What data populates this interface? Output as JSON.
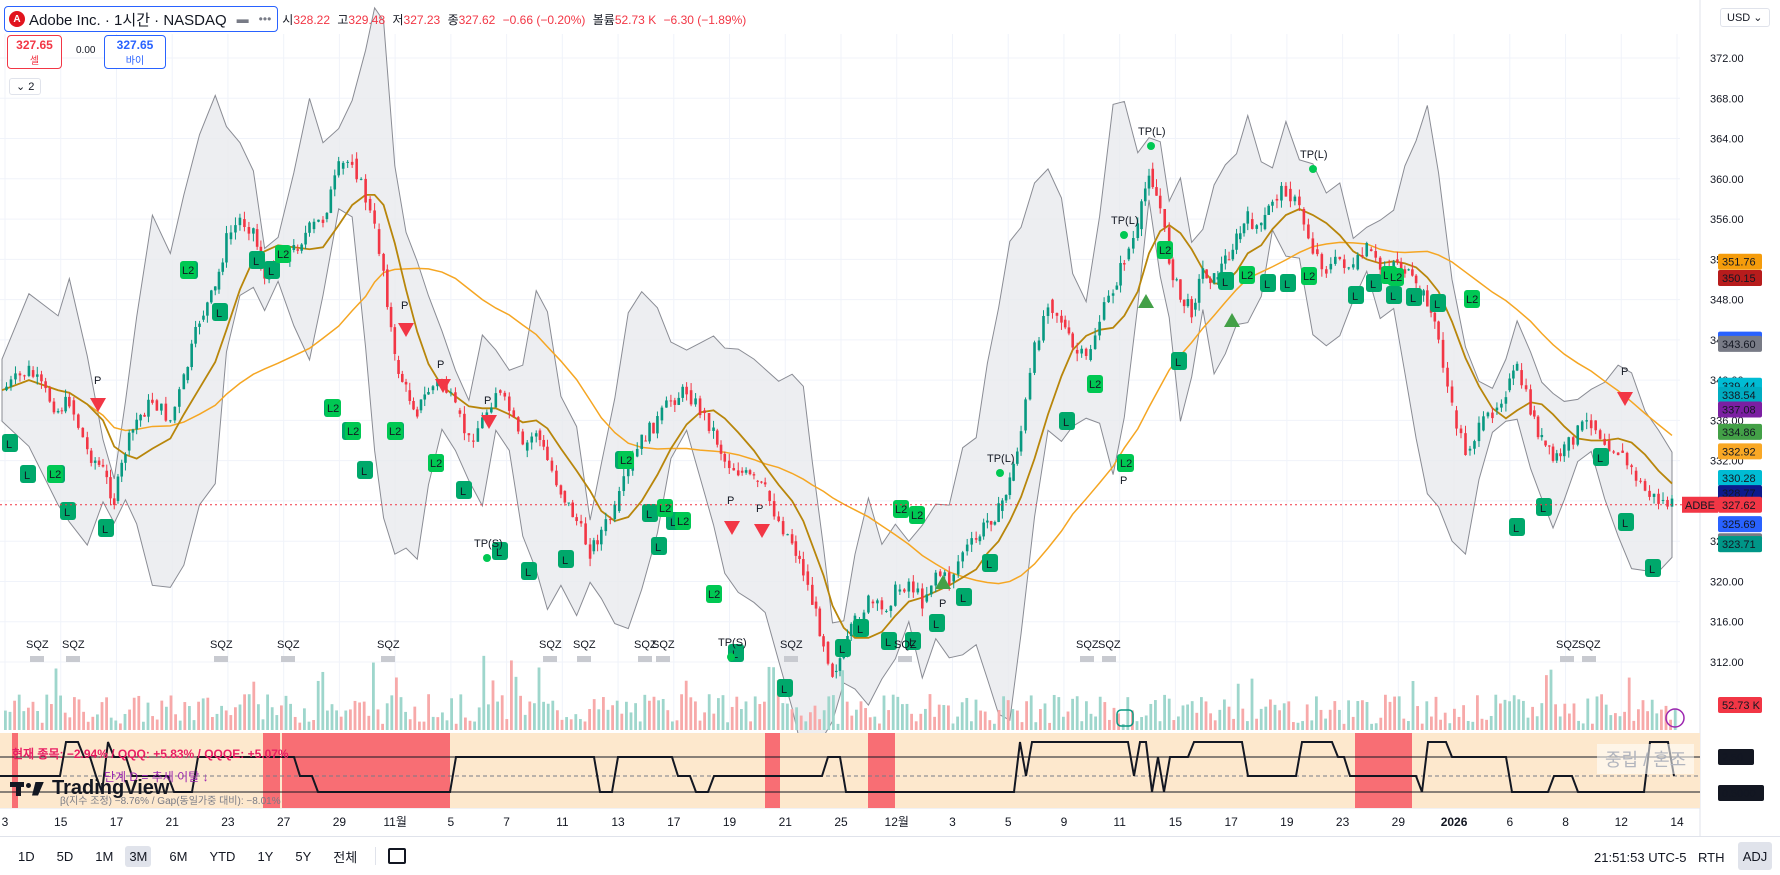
{
  "header": {
    "symbol_title": "Adobe Inc. · 1시간 · NASDAQ",
    "logo_letter": "A",
    "more_icon": "more-dots-icon",
    "open_label": "시",
    "open_value": "328.22",
    "high_label": "고",
    "high_value": "329.48",
    "low_label": "저",
    "low_value": "327.23",
    "close_label": "종",
    "close_value": "327.62",
    "change": "−0.66 (−0.20%)",
    "volume_label": "볼륨",
    "volume_value": "52.73 K",
    "volume_change": "−6.30 (−1.89%)"
  },
  "trade": {
    "sell_price": "327.65",
    "sell_label": "셀",
    "spread": "0.00",
    "buy_price": "327.65",
    "buy_label": "바이"
  },
  "indicators_toggle": "2",
  "currency": "USD",
  "oscillator": {
    "line1": "현재 종목: −2.94% / QQQ: +5.83% / QQQE: +5.07%",
    "line2": "단계 D = 추세 이탈 ↓",
    "line3": "β(지수 조정) −8.76% / Gap(동일가중 대비): −8.01%",
    "level_high": "2.50",
    "level_low": "0.5000",
    "watermark": "중립 / 혼조"
  },
  "chart_data": {
    "type": "candlestick",
    "symbol": "ADBE",
    "interval": "1시간",
    "exchange": "NASDAQ",
    "y_axis": {
      "ticks": [
        "372.00",
        "368.00",
        "364.00",
        "360.00",
        "356.00",
        "352.00",
        "348.00",
        "344.00",
        "340.00",
        "336.00",
        "332.00",
        "328.00",
        "324.00",
        "320.00",
        "316.00",
        "312.00"
      ],
      "ylim": [
        310.5,
        373.5
      ]
    },
    "x_axis": {
      "ticks": [
        "3",
        "15",
        "17",
        "21",
        "23",
        "27",
        "29",
        "11월",
        "5",
        "7",
        "11",
        "13",
        "17",
        "19",
        "21",
        "25",
        "12월",
        "3",
        "5",
        "9",
        "11",
        "15",
        "17",
        "19",
        "23",
        "29",
        "2026",
        "6",
        "8",
        "12",
        "14"
      ]
    },
    "last_price": 327.62,
    "last_price_label": "327.62",
    "last_price_tag": "ADBE",
    "price_tags": [
      {
        "label": "351.76",
        "value": 351.76,
        "color": "#f59c0b"
      },
      {
        "label": "350.15",
        "value": 350.15,
        "color": "#b71c1c"
      },
      {
        "label": "344.03",
        "value": 344.03,
        "color": "#2962ff"
      },
      {
        "label": "343.60",
        "value": 343.6,
        "color": "#787b86"
      },
      {
        "label": "339.44",
        "value": 339.44,
        "color": "#00bcd4"
      },
      {
        "label": "338.54",
        "value": 338.54,
        "color": "#00acc1"
      },
      {
        "label": "337.08",
        "value": 337.08,
        "color": "#7b1fa2"
      },
      {
        "label": "334.86",
        "value": 334.86,
        "color": "#43a047"
      },
      {
        "label": "332.92",
        "value": 332.92,
        "color": "#f9a825"
      },
      {
        "label": "330.28",
        "value": 330.28,
        "color": "#00bcd4"
      },
      {
        "label": "328.77",
        "value": 328.77,
        "color": "#0d1a8c"
      },
      {
        "label": "325.69",
        "value": 325.69,
        "color": "#2962ff"
      },
      {
        "label": "324.00",
        "value": 324.0,
        "color": "#787b86"
      },
      {
        "label": "323.71",
        "value": 323.71,
        "color": "#00c853"
      },
      {
        "label": "323.71",
        "value": 323.71,
        "color": "#009688"
      }
    ],
    "volume_tag": "52.73 K",
    "price_path": [
      [
        0,
        339
      ],
      [
        12,
        341
      ],
      [
        25,
        337
      ],
      [
        30,
        338
      ],
      [
        38,
        333
      ],
      [
        45,
        331
      ],
      [
        50,
        328
      ],
      [
        55,
        333
      ],
      [
        60,
        336
      ],
      [
        67,
        338
      ],
      [
        75,
        336
      ],
      [
        81,
        340
      ],
      [
        88,
        346
      ],
      [
        95,
        349
      ],
      [
        100,
        354
      ],
      [
        106,
        356
      ],
      [
        112,
        355
      ],
      [
        117,
        350
      ],
      [
        123,
        352
      ],
      [
        130,
        353
      ],
      [
        137,
        355
      ],
      [
        143,
        356
      ],
      [
        150,
        361
      ],
      [
        156,
        362
      ],
      [
        162,
        358
      ],
      [
        166,
        355
      ],
      [
        170,
        351
      ],
      [
        175,
        342
      ],
      [
        180,
        339
      ],
      [
        185,
        337
      ],
      [
        190,
        339
      ],
      [
        196,
        340
      ],
      [
        202,
        337
      ],
      [
        208,
        334
      ],
      [
        214,
        336
      ],
      [
        220,
        339
      ],
      [
        226,
        337
      ],
      [
        232,
        333
      ],
      [
        238,
        335
      ],
      [
        243,
        332
      ],
      [
        249,
        329
      ],
      [
        256,
        326
      ],
      [
        262,
        323
      ],
      [
        267,
        325
      ],
      [
        273,
        327
      ],
      [
        279,
        331
      ],
      [
        285,
        334
      ],
      [
        292,
        336
      ],
      [
        298,
        338
      ],
      [
        305,
        339
      ],
      [
        311,
        337
      ],
      [
        317,
        335
      ],
      [
        322,
        332
      ],
      [
        328,
        331
      ],
      [
        335,
        330
      ],
      [
        340,
        329
      ],
      [
        346,
        326
      ],
      [
        352,
        324
      ],
      [
        357,
        321
      ],
      [
        361,
        318
      ],
      [
        366,
        314
      ],
      [
        370,
        311
      ],
      [
        375,
        313
      ],
      [
        380,
        316
      ],
      [
        386,
        318
      ],
      [
        392,
        317
      ],
      [
        398,
        319
      ],
      [
        404,
        320
      ],
      [
        410,
        318
      ],
      [
        416,
        321
      ],
      [
        422,
        320
      ],
      [
        428,
        323
      ],
      [
        434,
        324
      ],
      [
        439,
        326
      ],
      [
        444,
        327
      ],
      [
        449,
        330
      ],
      [
        454,
        335
      ],
      [
        460,
        343
      ],
      [
        466,
        348
      ],
      [
        472,
        346
      ],
      [
        477,
        343
      ],
      [
        483,
        342
      ],
      [
        489,
        346
      ],
      [
        495,
        349
      ],
      [
        500,
        352
      ],
      [
        506,
        355
      ],
      [
        511,
        361
      ],
      [
        516,
        357
      ],
      [
        520,
        352
      ],
      [
        525,
        348
      ],
      [
        530,
        347
      ],
      [
        535,
        351
      ],
      [
        540,
        350
      ],
      [
        545,
        352
      ],
      [
        550,
        354
      ],
      [
        555,
        356
      ],
      [
        561,
        355
      ],
      [
        566,
        358
      ],
      [
        572,
        359
      ],
      [
        578,
        357
      ],
      [
        584,
        353
      ],
      [
        590,
        351
      ],
      [
        596,
        352
      ],
      [
        602,
        351
      ],
      [
        608,
        353
      ],
      [
        614,
        351
      ],
      [
        620,
        352
      ],
      [
        625,
        351
      ],
      [
        630,
        349
      ],
      [
        635,
        348
      ],
      [
        640,
        344
      ],
      [
        646,
        337
      ],
      [
        652,
        333
      ],
      [
        658,
        335
      ],
      [
        664,
        337
      ],
      [
        670,
        339
      ],
      [
        675,
        341
      ],
      [
        681,
        337
      ],
      [
        686,
        334
      ],
      [
        691,
        332
      ],
      [
        696,
        333
      ],
      [
        702,
        335
      ],
      [
        708,
        336
      ],
      [
        714,
        334
      ],
      [
        720,
        333
      ],
      [
        726,
        331
      ],
      [
        732,
        329
      ],
      [
        738,
        328
      ],
      [
        744,
        327.62
      ]
    ],
    "volume_bars_relative": "auto",
    "signals": {
      "long_labels": "L",
      "long2_labels": "L2",
      "take_profit_labels": [
        "TP(L)",
        "TP(L)",
        "TP(L)",
        "TP(L)",
        "TP(S)",
        "TP(S)"
      ],
      "pivot_label": "P",
      "squeeze_label": "SQZ"
    },
    "grid": true
  },
  "bottom_bar": {
    "ranges": [
      "1D",
      "5D",
      "1M",
      "3M",
      "6M",
      "YTD",
      "1Y",
      "5Y",
      "전체"
    ],
    "active_range": "3M",
    "time": "21:51:53 UTC-5",
    "session": "RTH",
    "adj": "ADJ"
  },
  "brand": "TradingView"
}
